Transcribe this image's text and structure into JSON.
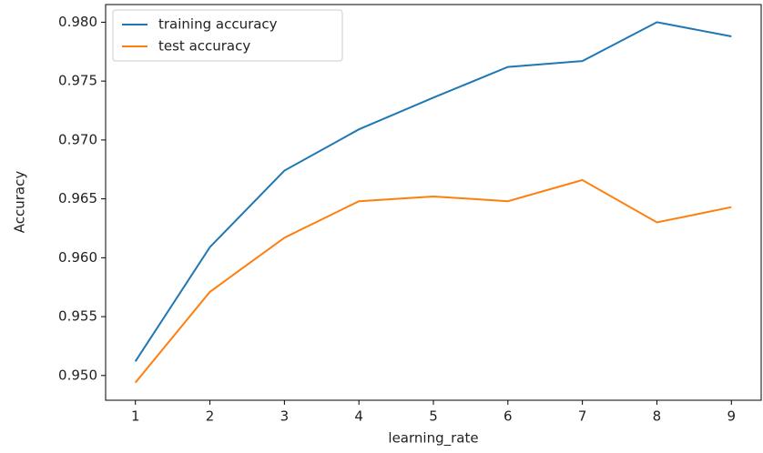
{
  "chart_data": {
    "type": "line",
    "x": [
      1,
      2,
      3,
      4,
      5,
      6,
      7,
      8,
      9
    ],
    "series": [
      {
        "name": "training accuracy",
        "color": "#1f77b4",
        "values": [
          0.9512,
          0.9609,
          0.9674,
          0.9709,
          0.9736,
          0.9762,
          0.9767,
          0.98,
          0.9788
        ]
      },
      {
        "name": "test accuracy",
        "color": "#ff7f0e",
        "values": [
          0.9494,
          0.9571,
          0.9617,
          0.9648,
          0.9652,
          0.9648,
          0.9666,
          0.963,
          0.9643
        ]
      }
    ],
    "xlabel": "learning_rate",
    "ylabel": "Accuracy",
    "xlim": [
      0.6,
      9.4
    ],
    "ylim": [
      0.9479,
      0.9815
    ],
    "xticks": [
      1,
      2,
      3,
      4,
      5,
      6,
      7,
      8,
      9
    ],
    "yticks": [
      {
        "value": 0.95,
        "label": "0.950"
      },
      0.955,
      {
        "value": 0.96,
        "label": "0.960"
      },
      0.965,
      {
        "value": 0.97,
        "label": "0.970"
      },
      0.975,
      {
        "value": 0.98,
        "label": "0.980"
      }
    ],
    "legend": "upper left"
  }
}
